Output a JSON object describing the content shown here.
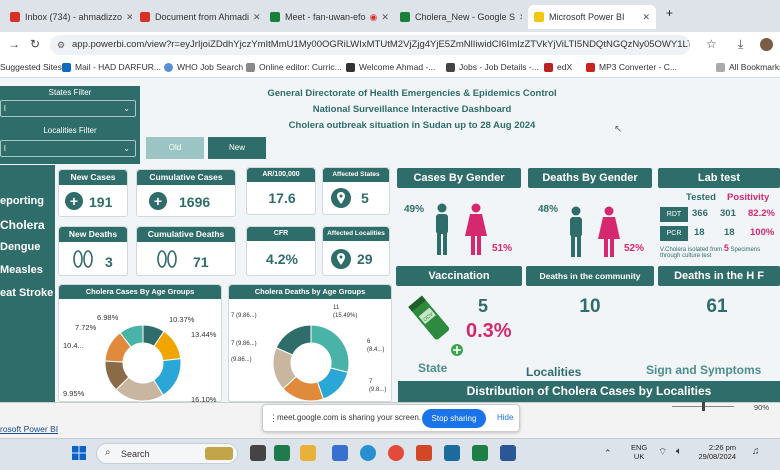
{
  "browser": {
    "tabs": [
      {
        "label": "Inbox (734) - ahmadizzo",
        "color": "#d93025"
      },
      {
        "label": "Document from Ahmadi",
        "color": "#d93025"
      },
      {
        "label": "Meet - fan-uwan-efo",
        "color": "#188038"
      },
      {
        "label": "Cholera_New - Google S",
        "color": "#188038"
      },
      {
        "label": "Microsoft Power BI",
        "color": "#f2c811"
      }
    ],
    "new_tab": "+",
    "url": "app.powerbi.com/view?r=eyJrIjoiZDdhYjczYmItMmU1My00OGRiLWIxMTUtM2VjZjg4YjE5ZmNlIiwidCI6ImIzZTVkYjViLTI5NDQtNGQzNy05OWY1LTc0ODhhYjM...",
    "bookmarks": [
      "Suggested Sites",
      "Mail - HAD DARFUR...",
      "WHO Job Search",
      "Online editor: Curric...",
      "Welcome Ahmad -...",
      "Jobs - Job Details -...",
      "edX",
      "MP3 Converter - C...",
      "All Bookmarks"
    ]
  },
  "dashboard": {
    "header": {
      "line1": "General Directorate of Health Emergencies &  Epidemics Control",
      "line2": "National Surveillance Interactive Dashboard",
      "line3": "Cholera  outbreak situation in Sudan up to 28 Aug 2024"
    },
    "filters": {
      "states_label": "States Filter",
      "states_value": "l",
      "localities_label": "Localities Filter",
      "localities_value": "l"
    },
    "toggle": {
      "old": "Old",
      "new": "New"
    },
    "nav": [
      "eporting",
      "Cholera",
      "Dengue",
      "Measles",
      "eat Stroke"
    ],
    "kpis": {
      "new_cases_label": "New Cases",
      "new_cases": "191",
      "cum_cases_label": "Cumulative Cases",
      "cum_cases": "1696",
      "ar_label": "AR/100,000",
      "ar": "17.6",
      "affected_states_label": "Affected States",
      "affected_states": "5",
      "new_deaths_label": "New Deaths",
      "new_deaths": "3",
      "cum_deaths_label": "Cumulative Deaths",
      "cum_deaths": "71",
      "cfr_label": "CFR",
      "cfr": "4.2%",
      "affected_localities_label": "Affected Localities",
      "affected_localities": "29"
    },
    "gender": {
      "cases_title": "Cases By Gender",
      "cases_male": "49%",
      "cases_female": "51%",
      "deaths_title": "Deaths By Gender",
      "deaths_male": "48%",
      "deaths_female": "52%"
    },
    "lab": {
      "title": "Lab test",
      "tested_label": "Tested",
      "positivity_label": "Positivity",
      "rows": [
        {
          "test": "RDT",
          "tested": "366",
          "positive": "301",
          "positivity": "82.2%"
        },
        {
          "test": "PCR",
          "tested": "18",
          "positive": "18",
          "positivity": "100%"
        }
      ],
      "note1": "V.Cholera isolated from",
      "note_count": "5",
      "note2": "Specimens",
      "note3": "through culture test"
    },
    "vaccination": {
      "title": "Vaccination",
      "value": "5",
      "pct": "0.3%",
      "vial_label": "OCV"
    },
    "deaths_community": {
      "title": "Deaths in the community",
      "value": "10"
    },
    "deaths_hf": {
      "title": "Deaths in the H F",
      "value": "61"
    },
    "bottom": {
      "state": "State",
      "localities": "Localities",
      "sign": "Sign and Symptoms",
      "distribution": "Distribution of Cholera Cases by Localities"
    },
    "age_cases": {
      "title": "Cholera Cases By Age Groups",
      "labels": [
        "6.98%",
        "10.37%",
        "7.72%",
        "13.44%",
        "10.4...",
        "9.95%",
        "16.10%"
      ]
    },
    "age_deaths": {
      "title": "Cholera Deaths by Age Groups",
      "labels": [
        "11",
        "(15.49%)",
        "7 (9.86...)",
        "7 (9.86...)",
        "6",
        "(8.4...)",
        "(9.86...)",
        "7",
        "(9.8...)"
      ]
    }
  },
  "statusbar": {
    "app_name": "rosoft Power BI",
    "share_text": "meet.google.com is sharing your screen.",
    "stop_sharing": "Stop sharing",
    "hide": "Hide",
    "zoom": "90%"
  },
  "taskbar": {
    "search": "Search",
    "lang1": "ENG",
    "lang2": "UK",
    "time": "2:26 pm",
    "date": "29/08/2024"
  },
  "colors": {
    "teal": "#2f6d6a",
    "pink": "#d6286f"
  },
  "chart_data": [
    {
      "type": "pie",
      "title": "Cholera Cases By Age Groups",
      "values": [
        6.98,
        10.37,
        13.44,
        16.1,
        9.95,
        10.4,
        7.72
      ],
      "labels": [
        "6.98%",
        "10.37%",
        "13.44%",
        "16.10%",
        "9.95%",
        "10.4...",
        "7.72%"
      ]
    },
    {
      "type": "pie",
      "title": "Cholera Deaths by Age Groups",
      "values": [
        11,
        6,
        7,
        7,
        7
      ],
      "labels": [
        "11 (15.49%)",
        "6 (8.4...)",
        "7 (9.8...)",
        "7 (9.86...)",
        "7 (9.86...)"
      ]
    }
  ]
}
